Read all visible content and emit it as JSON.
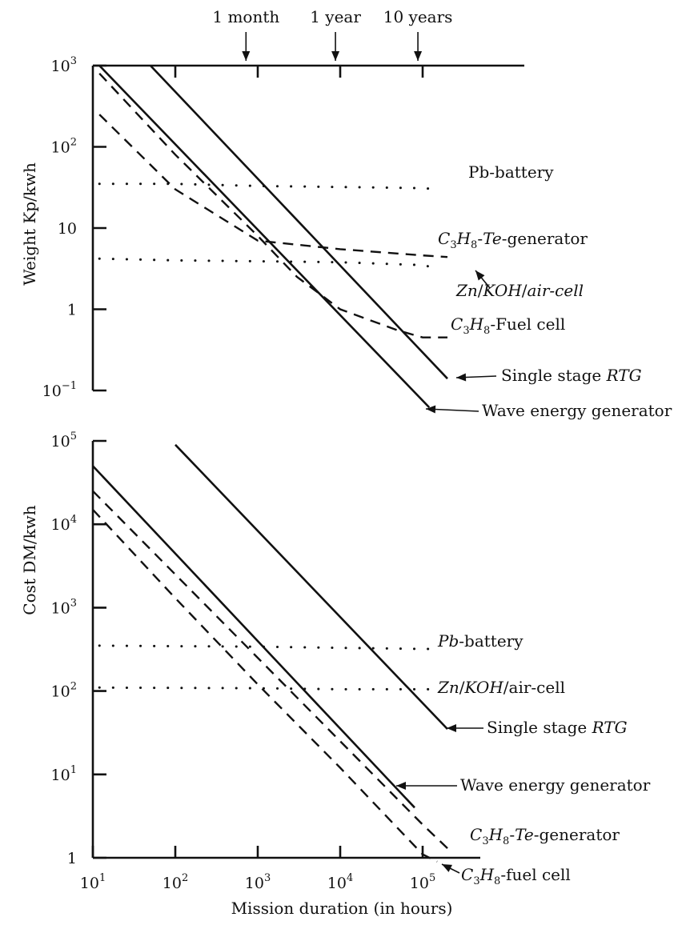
{
  "chart_data": [
    {
      "type": "line",
      "ylabel": "Weight Kp/kwh",
      "xlabel": "",
      "x_scale": "log",
      "y_scale": "log",
      "xlim": [
        10,
        300000
      ],
      "ylim": [
        0.1,
        1000
      ],
      "y_ticks": [
        {
          "value": 1000,
          "base": "10",
          "exp": "3"
        },
        {
          "value": 100,
          "base": "10",
          "exp": "2"
        },
        {
          "value": 10,
          "base": "10",
          "exp": ""
        },
        {
          "value": 1,
          "base": "1",
          "exp": ""
        },
        {
          "value": 0.1,
          "base": "10",
          "exp": "−1"
        }
      ],
      "x_ticks": [
        100,
        1000,
        10000,
        100000
      ],
      "time_markers": [
        {
          "label": "1 month",
          "x": 720
        },
        {
          "label": "1 year",
          "x": 8760
        },
        {
          "label": "10 years",
          "x": 87600
        }
      ],
      "series": [
        {
          "name": "Pb-battery",
          "style": "dotted",
          "x": [
            12,
            100,
            1000,
            10000,
            100000,
            150000
          ],
          "y": [
            35,
            35,
            33,
            32,
            31,
            30
          ]
        },
        {
          "name": "C3H8-Te-generator",
          "style": "dashed",
          "x": [
            12,
            100,
            1000,
            10000,
            100000,
            200000
          ],
          "y": [
            250,
            30,
            7,
            5.5,
            4.6,
            4.4
          ]
        },
        {
          "name": "Zn/KOH/air-cell",
          "style": "dotted",
          "x": [
            12,
            100,
            1000,
            10000,
            100000,
            150000
          ],
          "y": [
            4.2,
            4.0,
            3.9,
            3.8,
            3.5,
            3.2
          ]
        },
        {
          "name": "C3H8-Fuel cell",
          "style": "dashed",
          "x": [
            12,
            100,
            1000,
            3000,
            10000,
            50000,
            100000,
            200000
          ],
          "y": [
            800,
            80,
            8,
            2.5,
            1,
            0.55,
            0.45,
            0.45
          ]
        },
        {
          "name": "Single stage RTG",
          "style": "solid",
          "x": [
            50,
            200000
          ],
          "y": [
            1000,
            0.14
          ]
        },
        {
          "name": "Wave energy generator",
          "style": "solid",
          "x": [
            12,
            120000
          ],
          "y": [
            1000,
            0.062
          ]
        }
      ],
      "annotations": [
        {
          "name": "Pb-battery",
          "label_parts": [
            {
              "t": "Pb-battery",
              "italic": false
            }
          ]
        },
        {
          "name": "C3H8-Te-generator",
          "label_parts": [
            {
              "t": "C",
              "italic": true
            },
            {
              "t": "3",
              "sub": true
            },
            {
              "t": "H",
              "italic": true
            },
            {
              "t": "8",
              "sub": true
            },
            {
              "t": "-",
              "italic": false
            },
            {
              "t": "Te",
              "italic": true
            },
            {
              "t": "-generator",
              "italic": false
            }
          ]
        },
        {
          "name": "Zn/KOH/air-cell",
          "label_parts": [
            {
              "t": "Zn",
              "italic": true
            },
            {
              "t": "/",
              "italic": false
            },
            {
              "t": "KOH",
              "italic": true
            },
            {
              "t": "/",
              "italic": false
            },
            {
              "t": "air-cell",
              "italic": true
            }
          ]
        },
        {
          "name": "C3H8-Fuel cell",
          "label_parts": [
            {
              "t": "C",
              "italic": true
            },
            {
              "t": "3",
              "sub": true
            },
            {
              "t": "H",
              "italic": true
            },
            {
              "t": "8",
              "sub": true
            },
            {
              "t": "-Fuel cell",
              "italic": false
            }
          ]
        },
        {
          "name": "Single stage RTG",
          "label_parts": [
            {
              "t": "Single stage ",
              "italic": false
            },
            {
              "t": "RTG",
              "italic": true
            }
          ]
        },
        {
          "name": "Wave energy generator",
          "label_parts": [
            {
              "t": "Wave energy generator",
              "italic": false
            }
          ]
        }
      ]
    },
    {
      "type": "line",
      "ylabel": "Cost DM/kwh",
      "xlabel": "Mission duration (in hours)",
      "x_scale": "log",
      "y_scale": "log",
      "xlim": [
        10,
        300000
      ],
      "ylim": [
        1,
        100000
      ],
      "y_ticks": [
        {
          "value": 100000,
          "base": "10",
          "exp": "5"
        },
        {
          "value": 10000,
          "base": "10",
          "exp": "4"
        },
        {
          "value": 1000,
          "base": "10",
          "exp": "3"
        },
        {
          "value": 100,
          "base": "10",
          "exp": "2"
        },
        {
          "value": 10,
          "base": "10",
          "exp": "1"
        },
        {
          "value": 1,
          "base": "1",
          "exp": ""
        }
      ],
      "x_ticks": [
        {
          "value": 10,
          "base": "10",
          "exp": "1"
        },
        {
          "value": 100,
          "base": "10",
          "exp": "2"
        },
        {
          "value": 1000,
          "base": "10",
          "exp": "3"
        },
        {
          "value": 10000,
          "base": "10",
          "exp": "4"
        },
        {
          "value": 100000,
          "base": "10",
          "exp": "5"
        }
      ],
      "series": [
        {
          "name": "Pb-battery",
          "style": "dotted",
          "x": [
            12,
            1000,
            10000,
            100000,
            120000
          ],
          "y": [
            350,
            340,
            330,
            320,
            320
          ]
        },
        {
          "name": "Zn/KOH/air-cell",
          "style": "dotted",
          "x": [
            12,
            1000,
            10000,
            100000,
            120000
          ],
          "y": [
            110,
            108,
            105,
            105,
            105
          ]
        },
        {
          "name": "Single stage RTG",
          "style": "solid",
          "x": [
            100,
            200000
          ],
          "y": [
            90000,
            35
          ]
        },
        {
          "name": "Wave energy generator",
          "style": "solid",
          "x": [
            10,
            80000
          ],
          "y": [
            50000,
            4
          ]
        },
        {
          "name": "C3H8-Te-generator",
          "style": "dashed",
          "x": [
            10,
            100,
            1000,
            10000,
            50000,
            100000,
            200000
          ],
          "y": [
            25000,
            2500,
            250,
            25,
            5,
            2.5,
            1.3
          ]
        },
        {
          "name": "C3H8-fuel cell",
          "style": "dashed",
          "x": [
            10,
            100,
            1000,
            10000,
            100000,
            150000
          ],
          "y": [
            15000,
            1300,
            120,
            12,
            1.1,
            0.9
          ]
        }
      ],
      "annotations": [
        {
          "name": "Pb-battery",
          "label_parts": [
            {
              "t": "Pb",
              "italic": true
            },
            {
              "t": "-battery",
              "italic": false
            }
          ]
        },
        {
          "name": "Zn/KOH/air-cell",
          "label_parts": [
            {
              "t": "Zn",
              "italic": true
            },
            {
              "t": "/",
              "italic": false
            },
            {
              "t": "KOH",
              "italic": true
            },
            {
              "t": "/air-cell",
              "italic": false
            }
          ]
        },
        {
          "name": "Single stage RTG",
          "label_parts": [
            {
              "t": "Single stage ",
              "italic": false
            },
            {
              "t": "RTG",
              "italic": true
            }
          ]
        },
        {
          "name": "Wave energy generator",
          "label_parts": [
            {
              "t": "Wave energy generator",
              "italic": false
            }
          ]
        },
        {
          "name": "C3H8-Te-generator",
          "label_parts": [
            {
              "t": "C",
              "italic": true
            },
            {
              "t": "3",
              "sub": true
            },
            {
              "t": "H",
              "italic": true
            },
            {
              "t": "8",
              "sub": true
            },
            {
              "t": "-",
              "italic": false
            },
            {
              "t": "Te",
              "italic": true
            },
            {
              "t": "-generator",
              "italic": false
            }
          ]
        },
        {
          "name": "C3H8-fuel cell",
          "label_parts": [
            {
              "t": "C",
              "italic": true
            },
            {
              "t": "3",
              "sub": true
            },
            {
              "t": "H",
              "italic": true
            },
            {
              "t": "8",
              "sub": true
            },
            {
              "t": "-fuel cell",
              "italic": false
            }
          ]
        }
      ]
    }
  ]
}
